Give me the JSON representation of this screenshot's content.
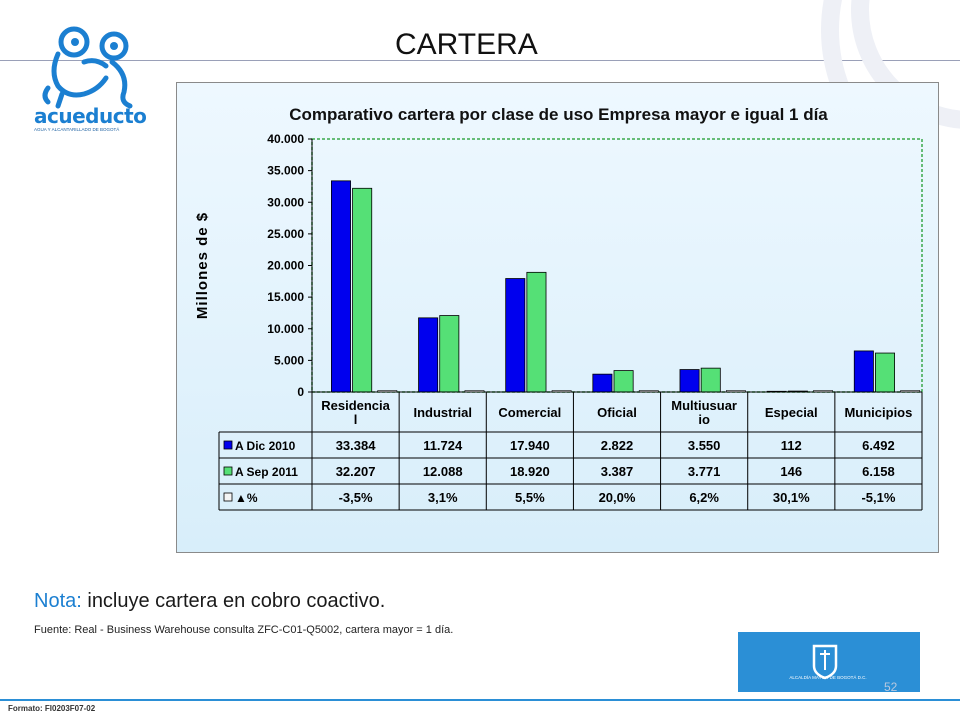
{
  "slide": {
    "title": "CARTERA",
    "page_number": "52",
    "formato_label": "Formato: FI0203F07-02"
  },
  "logo": {
    "name": "acueducto",
    "subtitle": "AGUA Y ALCANTARILLADO DE BOGOTÁ",
    "color": "#1b7fd1"
  },
  "alcaldia": {
    "text": "ALCALDÍA MAYOR DE BOGOTÁ D.C."
  },
  "note": {
    "label": "Nota:",
    "text": " incluye cartera en cobro coactivo."
  },
  "source": "Fuente: Real - Business Warehouse  consulta ZFC-C01-Q5002,  cartera mayor = 1 día.",
  "chart_data": {
    "type": "bar",
    "title": "Comparativo cartera por clase de uso Empresa mayor e igual 1 día",
    "ylabel": "Millones de $",
    "xlabel": "",
    "ylim": [
      0,
      40000
    ],
    "yticks": [
      "0",
      "5.000",
      "10.000",
      "15.000",
      "20.000",
      "25.000",
      "30.000",
      "35.000",
      "40.000"
    ],
    "categories": [
      [
        "Residencia",
        "l"
      ],
      [
        "Industrial"
      ],
      [
        "Comercial"
      ],
      [
        "Oficial"
      ],
      [
        "Multiusuar",
        "io"
      ],
      [
        "Especial"
      ],
      [
        "Municipios"
      ]
    ],
    "series": [
      {
        "name": "A Dic 2010",
        "color": "#0000ee",
        "values": [
          33384,
          11724,
          17940,
          2822,
          3550,
          112,
          6492
        ],
        "labels": [
          "33.384",
          "11.724",
          "17.940",
          "2.822",
          "3.550",
          "112",
          "6.492"
        ]
      },
      {
        "name": "A  Sep 2011",
        "color": "#55e076",
        "values": [
          32207,
          12088,
          18920,
          3387,
          3771,
          146,
          6158
        ],
        "labels": [
          "32.207",
          "12.088",
          "18.920",
          "3.387",
          "3.771",
          "146",
          "6.158"
        ]
      },
      {
        "name": "▲%",
        "color": "#f5f5f5",
        "values": [
          -3.5,
          3.1,
          5.5,
          20.0,
          6.2,
          30.1,
          -5.1
        ],
        "labels": [
          "-3,5%",
          "3,1%",
          "5,5%",
          "20,0%",
          "6,2%",
          "30,1%",
          "-5,1%"
        ]
      }
    ]
  }
}
